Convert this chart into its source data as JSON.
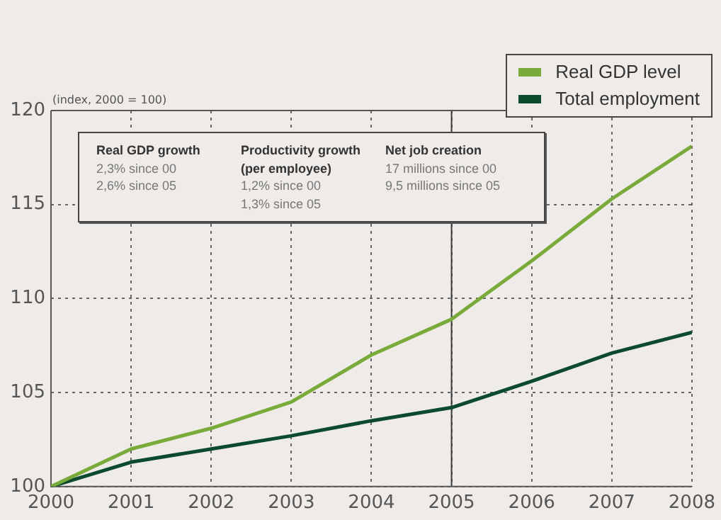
{
  "chart_data": {
    "type": "line",
    "ylabel": "(index, 2000 = 100)",
    "x": [
      2000,
      2001,
      2002,
      2003,
      2004,
      2005,
      2006,
      2007,
      2008
    ],
    "series": [
      {
        "name": "Real GDP level",
        "color": "#7aab3a",
        "values": [
          100,
          102.0,
          103.1,
          104.5,
          107.0,
          108.9,
          112.0,
          115.3,
          118.1
        ]
      },
      {
        "name": "Total employment",
        "color": "#0b4a2c",
        "values": [
          100,
          101.3,
          102.0,
          102.7,
          103.5,
          104.2,
          105.6,
          107.1,
          108.2
        ]
      }
    ],
    "xlim": [
      2000,
      2008
    ],
    "xticks": [
      2000,
      2001,
      2002,
      2003,
      2004,
      2005,
      2006,
      2007,
      2008
    ],
    "ylim": [
      100,
      120
    ],
    "yticks": [
      100,
      105,
      110,
      115,
      120
    ],
    "ref_lines": [
      {
        "axis": "x",
        "value": 2005,
        "color": "#3a3a3a"
      }
    ],
    "annotations": [
      "Real GDP growth\n2,3% since 00\n2,6% since 05",
      "Productivity growth (per employee)\n1,2% since 00\n1,3% since 05",
      "Net job creation\n17 millions since 00\n9,5 millions since 05"
    ],
    "grid": true,
    "legend": "top right",
    "marker": "none",
    "line_style": "solid"
  }
}
